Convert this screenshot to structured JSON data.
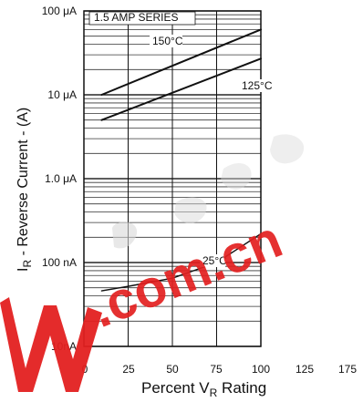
{
  "chart_data": {
    "type": "line",
    "title": "",
    "series_group_label": "1.5 AMP SERIES",
    "xlabel": "Percent V",
    "xlabel_sub": "R",
    "xlabel_suffix": " Rating",
    "ylabel_prefix": "I",
    "ylabel_sub": "R",
    "ylabel_main": " - Reverse Current - (A)",
    "x_ticks": [
      0,
      25,
      50,
      75,
      100,
      125,
      175
    ],
    "x_tick_labels": [
      "0",
      "25",
      "50",
      "75",
      "100",
      "125",
      "175"
    ],
    "y_ticks": [
      {
        "value": 1e-08,
        "label": "10nA"
      },
      {
        "value": 1e-07,
        "label": "100 nA"
      },
      {
        "value": 1e-06,
        "label": "1.0 μA"
      },
      {
        "value": 1e-05,
        "label": "10 μA"
      },
      {
        "value": 0.0001,
        "label": "100 μA"
      }
    ],
    "ylim": [
      1e-08,
      0.0001
    ],
    "xlim": [
      0,
      175
    ],
    "y_scale": "log",
    "grid": true,
    "series": [
      {
        "name": "150°C",
        "x": [
          10,
          100
        ],
        "y": [
          1e-05,
          6e-05
        ]
      },
      {
        "name": "125°C",
        "x": [
          10,
          100
        ],
        "y": [
          5e-06,
          2.7e-05
        ]
      },
      {
        "name": "25°C",
        "x": [
          10,
          25,
          50,
          75,
          100
        ],
        "y": [
          4.6e-08,
          5.2e-08,
          6.5e-08,
          1e-07,
          2.2e-07
        ]
      }
    ]
  },
  "watermark": {
    "text": ".com.cn"
  }
}
